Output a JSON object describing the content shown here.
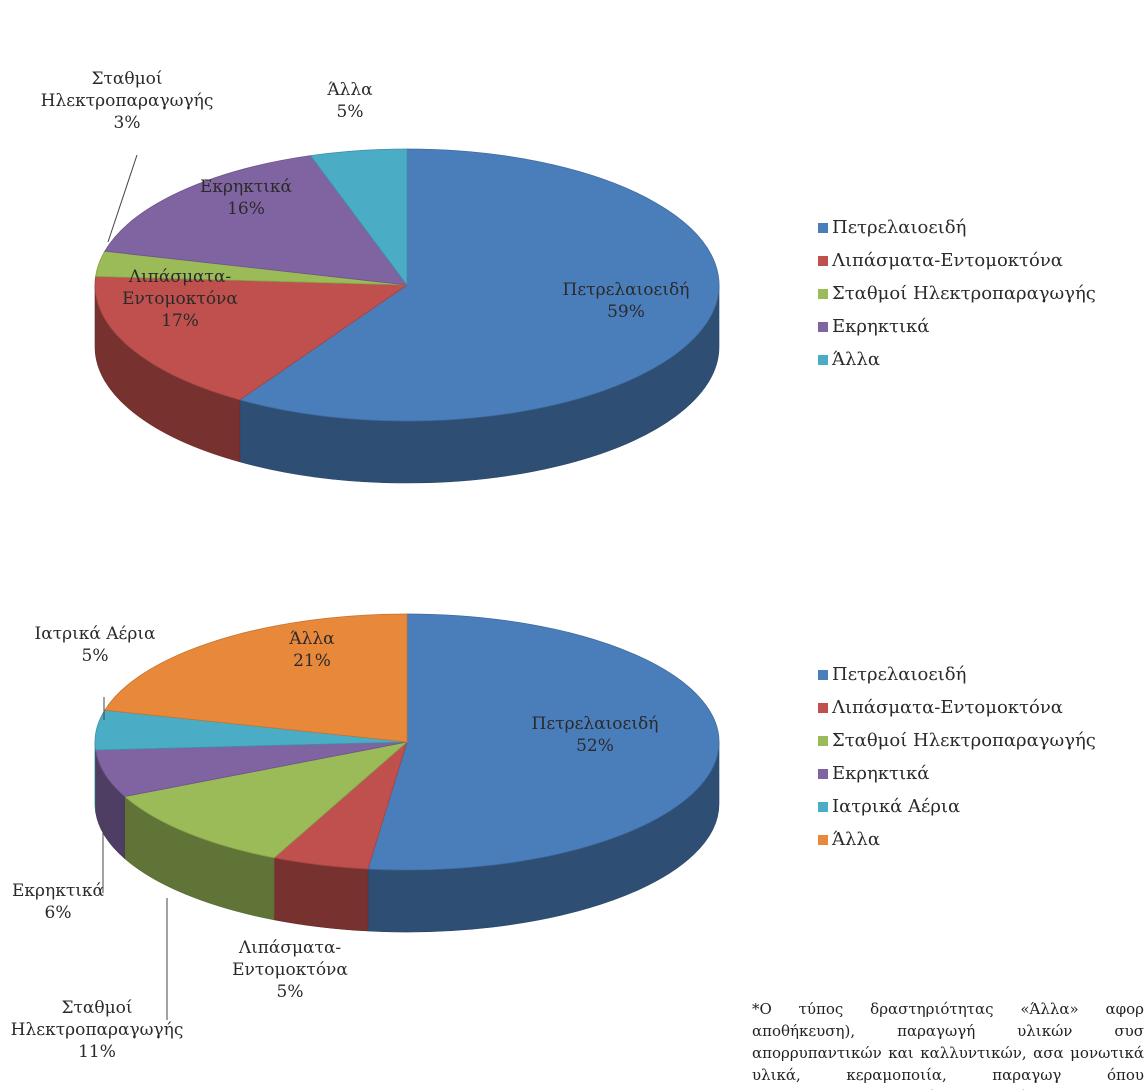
{
  "chart_data": [
    {
      "type": "pie",
      "categories": [
        "Πετρελαιοειδή",
        "Λιπάσματα-Εντομοκτόνα",
        "Σταθμοί Ηλεκτροπαραγωγής",
        "Εκρηκτικά",
        "Άλλα"
      ],
      "values": [
        59,
        17,
        3,
        16,
        5
      ],
      "colors": [
        "#4a7ebb",
        "#c0504d",
        "#9bbb59",
        "#8064a2",
        "#4bacc6"
      ],
      "slice_labels": [
        {
          "lines": [
            "Πετρελαιοειδή",
            "59%"
          ]
        },
        {
          "lines": [
            "Λιπάσματα-",
            "Εντομοκτόνα",
            "17%"
          ]
        },
        {
          "lines": [
            "Σταθμοί",
            "Ηλεκτροπαραγωγής",
            "3%"
          ]
        },
        {
          "lines": [
            "Εκρηκτικά",
            "16%"
          ]
        },
        {
          "lines": [
            "Άλλα",
            "5%"
          ]
        }
      ],
      "legend": [
        "Πετρελαιοειδή",
        "Λιπάσματα-Εντομοκτόνα",
        "Σταθμοί Ηλεκτροπαραγωγής",
        "Εκρηκτικά",
        "Άλλα"
      ],
      "legend_position": "right",
      "style": "3d"
    },
    {
      "type": "pie",
      "categories": [
        "Πετρελαιοειδή",
        "Λιπάσματα-Εντομοκτόνα",
        "Σταθμοί Ηλεκτροπαραγωγής",
        "Εκρηκτικά",
        "Ιατρικά Αέρια",
        "Άλλα"
      ],
      "values": [
        52,
        5,
        11,
        6,
        5,
        21
      ],
      "colors": [
        "#4a7ebb",
        "#c0504d",
        "#9bbb59",
        "#8064a2",
        "#4bacc6",
        "#e8883a"
      ],
      "slice_labels": [
        {
          "lines": [
            "Πετρελαιοειδή",
            "52%"
          ]
        },
        {
          "lines": [
            "Λιπάσματα-",
            "Εντομοκτόνα",
            "5%"
          ]
        },
        {
          "lines": [
            "Σταθμοί",
            "Ηλεκτροπαραγωγής",
            "11%"
          ]
        },
        {
          "lines": [
            "Εκρηκτικά",
            "6%"
          ]
        },
        {
          "lines": [
            "Ιατρικά Αέρια",
            "5%"
          ]
        },
        {
          "lines": [
            "Άλλα",
            "21%"
          ]
        }
      ],
      "legend": [
        "Πετρελαιοειδή",
        "Λιπάσματα-Εντομοκτόνα",
        "Σταθμοί Ηλεκτροπαραγωγής",
        "Εκρηκτικά",
        "Ιατρικά Αέρια",
        "Άλλα"
      ],
      "legend_position": "right",
      "style": "3d"
    }
  ],
  "footnote": "*Ο τύπος δραστηριότητας «Άλλα» αφορ αποθήκευση), παραγωγή υλικών συσ απορρυπαντικών και καλλυντικών, ασα μονωτικά υλικά, κεραμοποιία, παραγωγ όπου χρησιμοποιούνται επικίνδυνες ουσί"
}
